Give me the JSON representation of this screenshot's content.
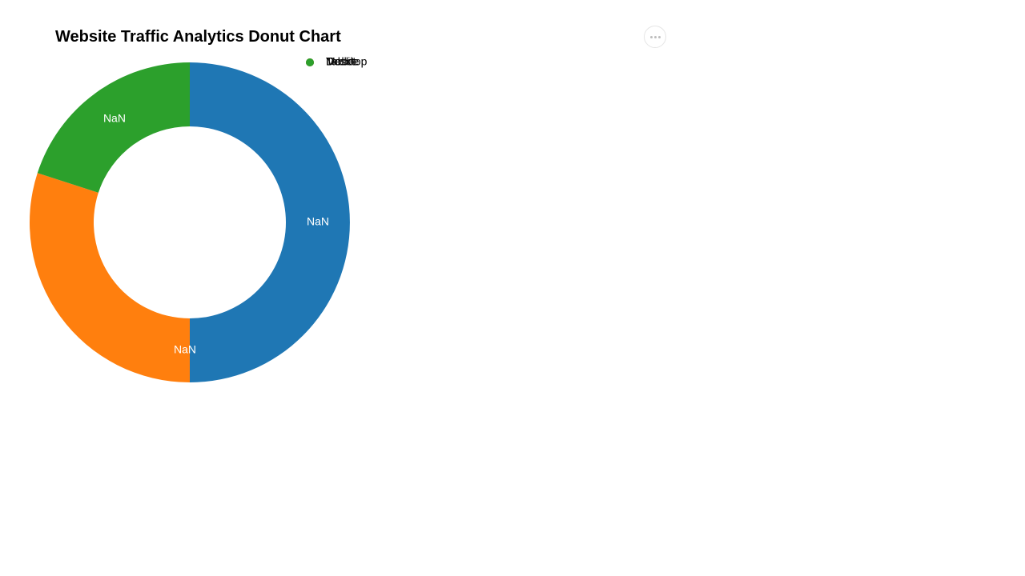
{
  "chart_data": {
    "type": "pie",
    "variant": "donut",
    "title": "Website Traffic Analytics Donut Chart",
    "categories": [
      "Desktop",
      "Mobile",
      "Tablet"
    ],
    "values": [
      50,
      30,
      20
    ],
    "slice_labels": [
      "NaN",
      "NaN",
      "NaN"
    ],
    "colors": [
      "#1f77b4",
      "#ff7f0e",
      "#2ca02c"
    ],
    "legend": {
      "placement": "top-right",
      "entries": [
        "Desktop",
        "Mobile",
        "Tablet"
      ]
    }
  },
  "toolbar": {
    "more_icon": "more-horizontal-icon"
  }
}
